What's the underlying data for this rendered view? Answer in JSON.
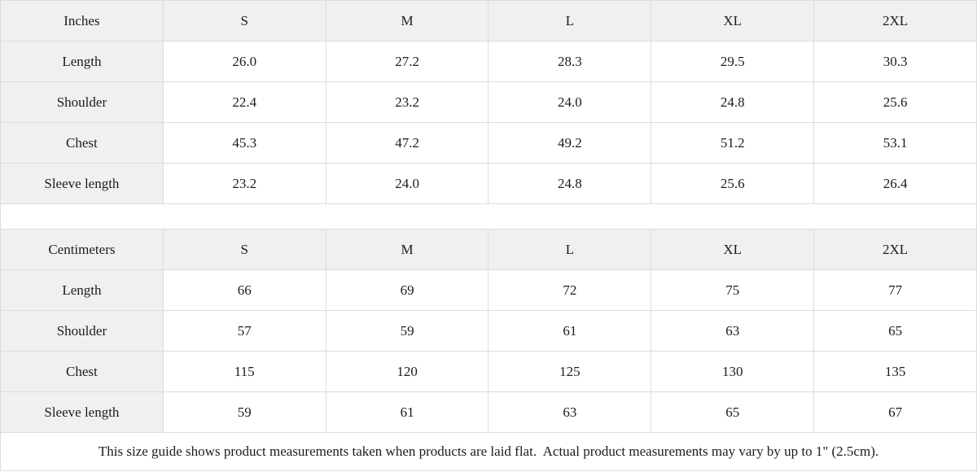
{
  "tables": [
    {
      "unit_label": "Inches",
      "sizes": [
        "S",
        "M",
        "L",
        "XL",
        "2XL"
      ],
      "rows": [
        {
          "label": "Length",
          "values": [
            "26.0",
            "27.2",
            "28.3",
            "29.5",
            "30.3"
          ]
        },
        {
          "label": "Shoulder",
          "values": [
            "22.4",
            "23.2",
            "24.0",
            "24.8",
            "25.6"
          ]
        },
        {
          "label": "Chest",
          "values": [
            "45.3",
            "47.2",
            "49.2",
            "51.2",
            "53.1"
          ]
        },
        {
          "label": "Sleeve length",
          "values": [
            "23.2",
            "24.0",
            "24.8",
            "25.6",
            "26.4"
          ]
        }
      ]
    },
    {
      "unit_label": "Centimeters",
      "sizes": [
        "S",
        "M",
        "L",
        "XL",
        "2XL"
      ],
      "rows": [
        {
          "label": "Length",
          "values": [
            "66",
            "69",
            "72",
            "75",
            "77"
          ]
        },
        {
          "label": "Shoulder",
          "values": [
            "57",
            "59",
            "61",
            "63",
            "65"
          ]
        },
        {
          "label": "Chest",
          "values": [
            "115",
            "120",
            "125",
            "130",
            "135"
          ]
        },
        {
          "label": "Sleeve length",
          "values": [
            "59",
            "61",
            "63",
            "65",
            "67"
          ]
        }
      ]
    }
  ],
  "footer": {
    "note": "This size guide shows product measurements taken when products are laid flat.  Actual product measurements may vary by up to 1\" (2.5cm)."
  },
  "colors": {
    "header_bg": "#f0f0f0",
    "cell_bg": "#ffffff",
    "border": "#dcdcdc",
    "text": "#1c1c1c"
  }
}
